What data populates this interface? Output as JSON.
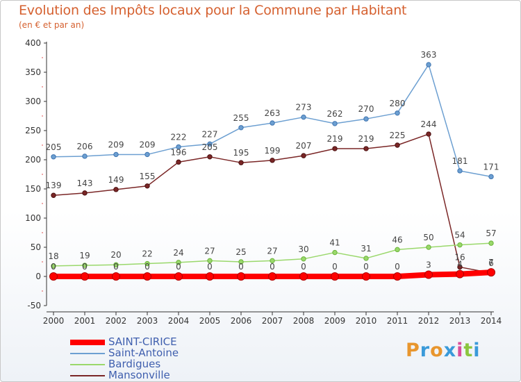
{
  "header": {
    "title": "Evolution des Impôts locaux pour la Commune par Habitant",
    "subtitle": "(en € et par an)"
  },
  "brand": {
    "text": "Proxiti"
  },
  "chart_data": {
    "type": "line",
    "title": "Evolution des Impôts locaux pour la Commune par Habitant",
    "subtitle": "(en € et par an)",
    "xlabel": "",
    "ylabel": "",
    "ylim": [
      -50,
      400
    ],
    "yticks": [
      -50,
      0,
      50,
      100,
      150,
      200,
      250,
      300,
      350,
      400
    ],
    "grid": false,
    "legend": "bottom-left",
    "categories": [
      "2000",
      "2001",
      "2002",
      "2003",
      "2004",
      "2005",
      "2006",
      "2007",
      "2008",
      "2009",
      "2010",
      "2011",
      "2012",
      "2013",
      "2014"
    ],
    "series": [
      {
        "name": "Saint-Antoine",
        "color": "#6c9fd1",
        "values": [
          205,
          206,
          209,
          209,
          222,
          227,
          255,
          263,
          273,
          262,
          270,
          280,
          363,
          181,
          171
        ],
        "labels": [
          "205",
          "206",
          "209",
          "209",
          "222",
          "227",
          "255",
          "263",
          "273",
          "262",
          "270",
          "280",
          "363",
          "181",
          "171"
        ]
      },
      {
        "name": "Bardigues",
        "color": "#9ad86b",
        "values": [
          18,
          19,
          20,
          22,
          24,
          27,
          25,
          27,
          30,
          41,
          31,
          46,
          50,
          54,
          57
        ],
        "labels": [
          "18",
          "19",
          "20",
          "22",
          "24",
          "27",
          "25",
          "27",
          "30",
          "41",
          "31",
          "46",
          "50",
          "54",
          "57"
        ]
      },
      {
        "name": "Mansonville",
        "color": "#7a2626",
        "values": [
          139,
          143,
          149,
          155,
          196,
          205,
          195,
          199,
          207,
          219,
          219,
          225,
          244,
          16,
          6
        ],
        "labels": [
          "139",
          "143",
          "149",
          "155",
          "196",
          "205",
          "195",
          "199",
          "207",
          "219",
          "219",
          "225",
          "244",
          "16",
          "6"
        ]
      },
      {
        "name": "SAINT-CIRICE",
        "color": "#ff0000",
        "values": [
          0,
          0,
          0,
          0,
          0,
          0,
          0,
          0,
          0,
          0,
          0,
          0,
          3,
          4,
          7
        ],
        "labels": [
          "0",
          "0",
          "0",
          "0",
          "0",
          "0",
          "0",
          "0",
          "0",
          "0",
          "0",
          "0",
          "3",
          "4",
          "7"
        ]
      }
    ],
    "legend_order": [
      "SAINT-CIRICE",
      "Saint-Antoine",
      "Bardigues",
      "Mansonville"
    ]
  }
}
